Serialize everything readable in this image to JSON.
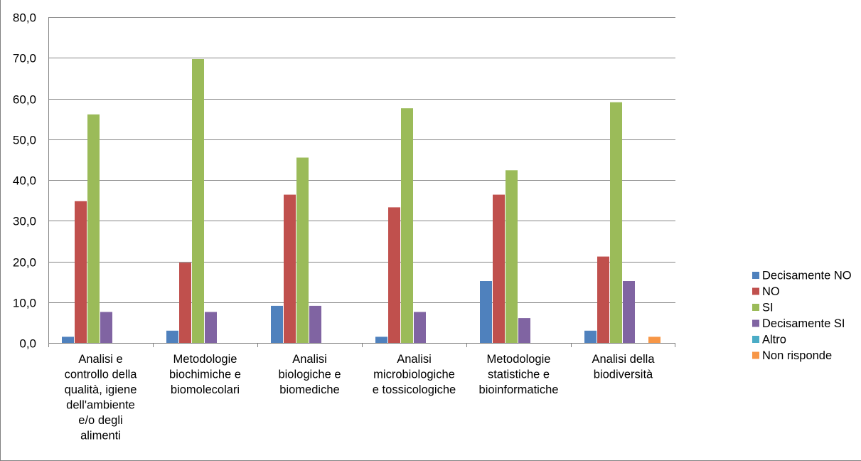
{
  "chart_data": {
    "type": "bar",
    "categories": [
      [
        "Analisi e",
        "controllo della",
        "qualità, igiene",
        "dell'ambiente",
        "e/o degli",
        "alimenti"
      ],
      [
        "Metodologie",
        "biochimiche  e",
        "biomolecolari"
      ],
      [
        "Analisi",
        "biologiche e",
        "biomediche"
      ],
      [
        "Analisi",
        "microbiologiche",
        "e tossicologiche"
      ],
      [
        "Metodologie",
        "statistiche e",
        "bioinformatiche"
      ],
      [
        "Analisi della",
        "biodiversità"
      ]
    ],
    "series": [
      {
        "name": "Decisamente NO",
        "color": "#4F81BD",
        "values": [
          1.5,
          3.0,
          9.1,
          1.5,
          15.2,
          3.0
        ]
      },
      {
        "name": "NO",
        "color": "#C0504D",
        "values": [
          34.8,
          19.7,
          36.4,
          33.3,
          36.4,
          21.2
        ]
      },
      {
        "name": "SI",
        "color": "#9BBB59",
        "values": [
          56.1,
          69.7,
          45.5,
          57.6,
          42.4,
          59.1
        ]
      },
      {
        "name": "Decisamente SI",
        "color": "#8064A2",
        "values": [
          7.6,
          7.6,
          9.1,
          7.6,
          6.1,
          15.2
        ]
      },
      {
        "name": "Altro",
        "color": "#4BACC6",
        "values": [
          0,
          0,
          0,
          0,
          0,
          0
        ]
      },
      {
        "name": "Non risponde",
        "color": "#F79646",
        "values": [
          0,
          0,
          0,
          0,
          0,
          1.5
        ]
      }
    ],
    "yticks": [
      "0,0",
      "10,0",
      "20,0",
      "30,0",
      "40,0",
      "50,0",
      "60,0",
      "70,0",
      "80,0"
    ],
    "ylim": [
      0,
      80
    ],
    "grid": true,
    "legend_position": "right"
  }
}
